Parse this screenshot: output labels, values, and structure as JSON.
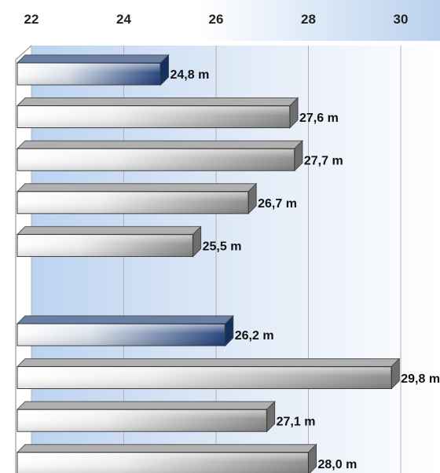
{
  "chart_data": {
    "type": "bar",
    "orientation": "horizontal",
    "x_axis": {
      "min": 22,
      "max": 30,
      "ticks": [
        22,
        24,
        26,
        28,
        30
      ],
      "position": "top"
    },
    "grid": true,
    "bars": [
      {
        "label": "24,8 m",
        "value": 24.8,
        "color": "#1f3f7a"
      },
      {
        "label": "27,6 m",
        "value": 27.6,
        "color": "#7f7f7f"
      },
      {
        "label": "27,7 m",
        "value": 27.7,
        "color": "#7f7f7f"
      },
      {
        "label": "26,7 m",
        "value": 26.7,
        "color": "#7f7f7f"
      },
      {
        "label": "25,5 m",
        "value": 25.5,
        "color": "#7f7f7f"
      },
      {
        "label": "26,2 m",
        "value": 26.2,
        "color": "#1f3f7a"
      },
      {
        "label": "29,8 m",
        "value": 29.8,
        "color": "#7f7f7f"
      },
      {
        "label": "27,1 m",
        "value": 27.1,
        "color": "#7f7f7f"
      },
      {
        "label": "28,0 m",
        "value": 28.0,
        "color": "#7f7f7f"
      }
    ],
    "gap_after_index": 4
  }
}
